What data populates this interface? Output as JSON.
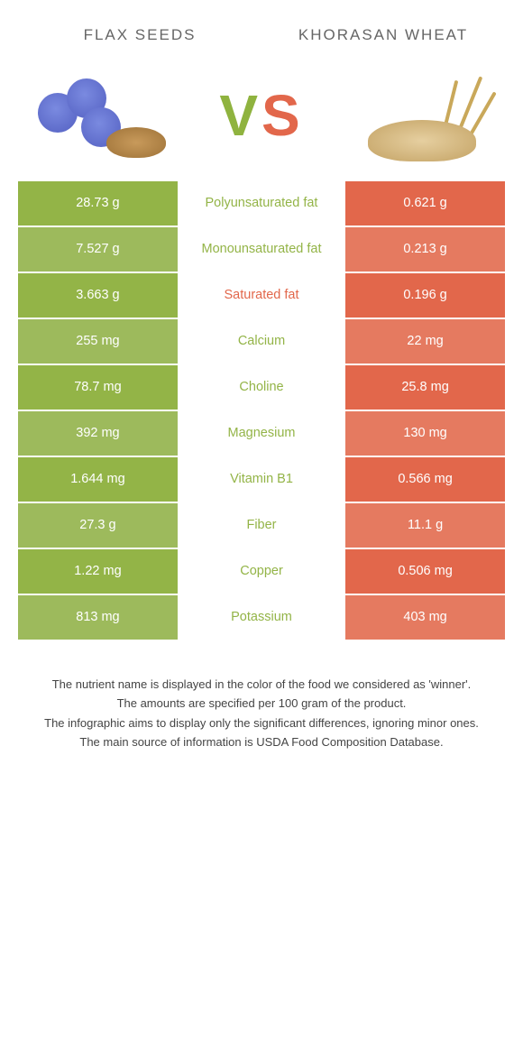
{
  "colors": {
    "left": "#93b447",
    "right": "#e2674b",
    "left_dim": "#9dba5c",
    "right_dim": "#e57a60",
    "flower": "#7a8ae0",
    "flower_dark": "#5966c6"
  },
  "left_food": "Flax seeds",
  "right_food": "Khorasan wheat",
  "vs": {
    "v": "V",
    "s": "S"
  },
  "rows": [
    {
      "label": "Polyunsaturated fat",
      "left": "28.73 g",
      "right": "0.621 g",
      "winner": "left"
    },
    {
      "label": "Monounsaturated fat",
      "left": "7.527 g",
      "right": "0.213 g",
      "winner": "left"
    },
    {
      "label": "Saturated fat",
      "left": "3.663 g",
      "right": "0.196 g",
      "winner": "right"
    },
    {
      "label": "Calcium",
      "left": "255 mg",
      "right": "22 mg",
      "winner": "left"
    },
    {
      "label": "Choline",
      "left": "78.7 mg",
      "right": "25.8 mg",
      "winner": "left"
    },
    {
      "label": "Magnesium",
      "left": "392 mg",
      "right": "130 mg",
      "winner": "left"
    },
    {
      "label": "Vitamin B1",
      "left": "1.644 mg",
      "right": "0.566 mg",
      "winner": "left"
    },
    {
      "label": "Fiber",
      "left": "27.3 g",
      "right": "11.1 g",
      "winner": "left"
    },
    {
      "label": "Copper",
      "left": "1.22 mg",
      "right": "0.506 mg",
      "winner": "left"
    },
    {
      "label": "Potassium",
      "left": "813 mg",
      "right": "403 mg",
      "winner": "left"
    }
  ],
  "footer": [
    "The nutrient name is displayed in the color of the food we considered as 'winner'.",
    "The amounts are specified per 100 gram of the product.",
    "The infographic aims to display only the significant differences, ignoring minor ones.",
    "The main source of information is USDA Food Composition Database."
  ]
}
